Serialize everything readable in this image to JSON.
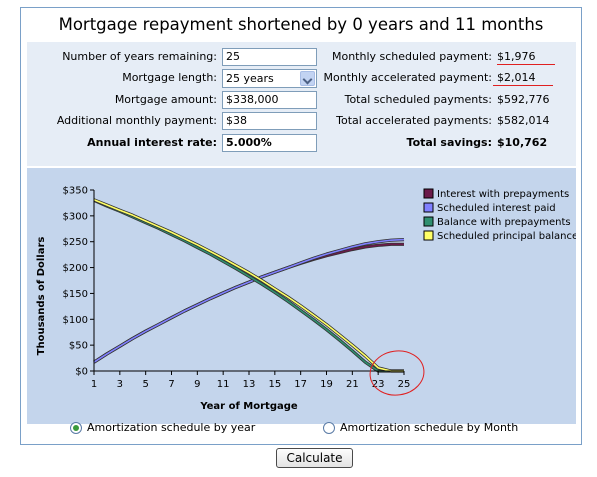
{
  "title": "Mortgage repayment shortened by 0 years and 11 months",
  "form": {
    "years_remaining": {
      "label": "Number of years remaining:",
      "value": "25"
    },
    "mortgage_length": {
      "label": "Mortgage length:",
      "value": "25 years"
    },
    "mortgage_amount": {
      "label": "Mortgage amount:",
      "value": "$338,000"
    },
    "additional_payment": {
      "label": "Additional monthly payment:",
      "value": "$38"
    },
    "interest_rate": {
      "label": "Annual interest rate:",
      "value": "5.000%"
    }
  },
  "results": {
    "monthly_scheduled": {
      "label": "Monthly scheduled payment:",
      "value": "$1,976"
    },
    "monthly_accelerated": {
      "label": "Monthly accelerated payment:",
      "value": "$2,014"
    },
    "total_scheduled": {
      "label": "Total scheduled payments:",
      "value": "$592,776"
    },
    "total_accelerated": {
      "label": "Total accelerated payments:",
      "value": "$582,014"
    },
    "total_savings": {
      "label": "Total savings:",
      "value": "$10,762"
    }
  },
  "chart_data": {
    "type": "line",
    "title": "",
    "xlabel": "Year of Mortgage",
    "ylabel": "Thousands of Dollars",
    "xlim": [
      1,
      25
    ],
    "ylim": [
      0,
      350
    ],
    "x_ticks": [
      1,
      3,
      5,
      7,
      9,
      11,
      13,
      15,
      17,
      19,
      21,
      23,
      25
    ],
    "y_ticks": [
      0,
      50,
      100,
      150,
      200,
      250,
      300,
      350
    ],
    "y_tick_labels": [
      "$0",
      "$50",
      "$100",
      "$150",
      "$200",
      "$250",
      "$300",
      "$350"
    ],
    "grid": false,
    "legend_position": "right",
    "x": [
      1,
      2,
      3,
      4,
      5,
      6,
      7,
      8,
      9,
      10,
      11,
      12,
      13,
      14,
      15,
      16,
      17,
      18,
      19,
      20,
      21,
      22,
      23,
      24,
      25
    ],
    "series": [
      {
        "name": "Interest with prepayments",
        "color": "#6b1a4a",
        "values": [
          17,
          33,
          48,
          63,
          77,
          90,
          103,
          116,
          128,
          140,
          151,
          162,
          172,
          182,
          191,
          200,
          208,
          216,
          223,
          229,
          235,
          240,
          243,
          245,
          245
        ]
      },
      {
        "name": "Scheduled interest paid",
        "color": "#8080ff",
        "values": [
          17,
          33,
          48,
          63,
          77,
          90,
          103,
          116,
          128,
          140,
          151,
          162,
          172,
          182,
          191,
          200,
          209,
          218,
          226,
          233,
          240,
          246,
          250,
          253,
          254
        ]
      },
      {
        "name": "Balance with prepayments",
        "color": "#2f8f6f",
        "values": [
          330,
          319,
          309,
          298,
          287,
          276,
          264,
          252,
          239,
          226,
          212,
          198,
          183,
          168,
          152,
          135,
          117,
          99,
          80,
          60,
          39,
          17,
          0,
          0,
          0
        ]
      },
      {
        "name": "Scheduled principal balance",
        "color": "#ffff66",
        "values": [
          331,
          321,
          311,
          301,
          290,
          279,
          268,
          256,
          244,
          231,
          218,
          204,
          190,
          175,
          159,
          143,
          126,
          108,
          90,
          70,
          50,
          29,
          6,
          0,
          0
        ]
      }
    ]
  },
  "options": {
    "by_year": "Amortization schedule by year",
    "by_month": "Amortization schedule by Month"
  },
  "calculate_label": "Calculate"
}
